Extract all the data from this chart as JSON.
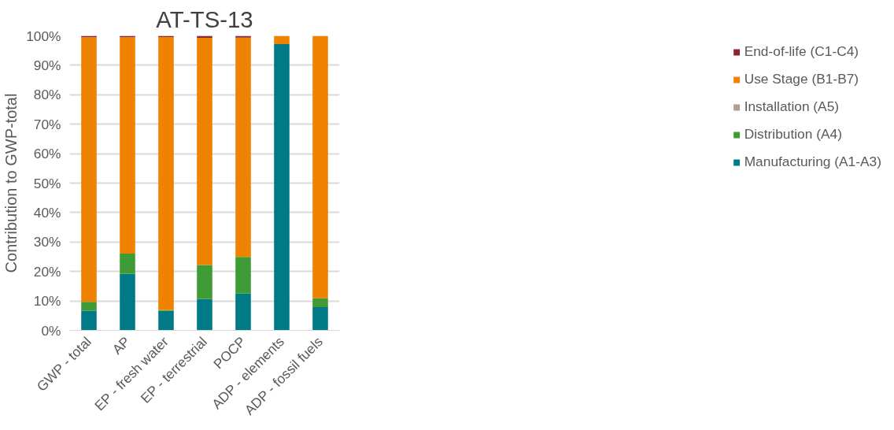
{
  "chart_data": {
    "type": "bar",
    "stacked": true,
    "title": "AT-TS-13",
    "ylabel": "Contribution to GWP-total",
    "categories": [
      "GWP - total",
      "AP",
      "EP - fresh water",
      "EP - terrestrial",
      "POCP",
      "ADP - elements",
      "ADP - fossil fuels"
    ],
    "series": [
      {
        "name": "Manufacturing (A1-A3)",
        "color": "#007a87",
        "values": [
          6.6,
          19.2,
          6.6,
          10.6,
          12.5,
          97.2,
          7.9
        ]
      },
      {
        "name": "Distribution (A4)",
        "color": "#3f9b35",
        "values": [
          3.1,
          6.9,
          0.3,
          11.6,
          12.4,
          0,
          3.0
        ]
      },
      {
        "name": "Installation (A5)",
        "color": "#ab9f94",
        "values": [
          0,
          0,
          0,
          0,
          0,
          0,
          0
        ]
      },
      {
        "name": "Use Stage (B1-B7)",
        "color": "#ef8300",
        "values": [
          89.8,
          73.4,
          92.7,
          77.1,
          74.5,
          2.8,
          89.1
        ]
      },
      {
        "name": "End-of-life (C1-C4)",
        "color": "#8e2535",
        "values": [
          0.5,
          0.5,
          0.4,
          0.7,
          0.6,
          0,
          0
        ]
      }
    ],
    "ylim": [
      0,
      100
    ],
    "yticks": [
      {
        "value": 0,
        "label": "0%"
      },
      {
        "value": 10,
        "label": "10%"
      },
      {
        "value": 20,
        "label": "20%"
      },
      {
        "value": 30,
        "label": "30%"
      },
      {
        "value": 40,
        "label": "40%"
      },
      {
        "value": 50,
        "label": "50%"
      },
      {
        "value": 60,
        "label": "60%"
      },
      {
        "value": 70,
        "label": "70%"
      },
      {
        "value": 80,
        "label": "80%"
      },
      {
        "value": 90,
        "label": "90%"
      },
      {
        "value": 100,
        "label": "100%"
      }
    ],
    "grid": "y",
    "legend": "right"
  }
}
